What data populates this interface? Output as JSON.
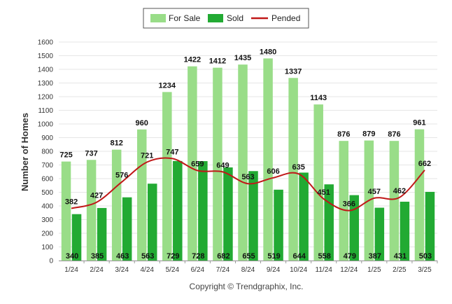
{
  "chart_data": {
    "type": "bar",
    "title": "",
    "xlabel": "",
    "ylabel": "Number of Homes",
    "ylim": [
      0,
      1600
    ],
    "yticks": [
      "0",
      "100",
      "200",
      "300",
      "400",
      "500",
      "600",
      "700",
      "800",
      "900",
      "1000",
      "1100",
      "1200",
      "1300",
      "1400",
      "1500",
      "1600"
    ],
    "grid": true,
    "legend_position": "top-center",
    "categories": [
      "1/24",
      "2/24",
      "3/24",
      "4/24",
      "5/24",
      "6/24",
      "7/24",
      "8/24",
      "9/24",
      "10/24",
      "11/24",
      "12/24",
      "1/25",
      "2/25",
      "3/25"
    ],
    "series": [
      {
        "name": "For Sale",
        "type": "bar",
        "color": "#99dd88",
        "values": [
          725,
          737,
          812,
          960,
          1234,
          1422,
          1412,
          1435,
          1480,
          1337,
          1143,
          876,
          879,
          876,
          961
        ]
      },
      {
        "name": "Sold",
        "type": "bar",
        "color": "#22aa33",
        "values": [
          340,
          385,
          463,
          563,
          729,
          728,
          682,
          655,
          519,
          644,
          558,
          479,
          387,
          431,
          503
        ]
      },
      {
        "name": "Pended",
        "type": "line",
        "color": "#c01818",
        "values": [
          382,
          427,
          576,
          721,
          747,
          659,
          649,
          563,
          606,
          635,
          451,
          366,
          457,
          462,
          662
        ]
      }
    ],
    "footer": "Copyright © Trendgraphix, Inc."
  }
}
